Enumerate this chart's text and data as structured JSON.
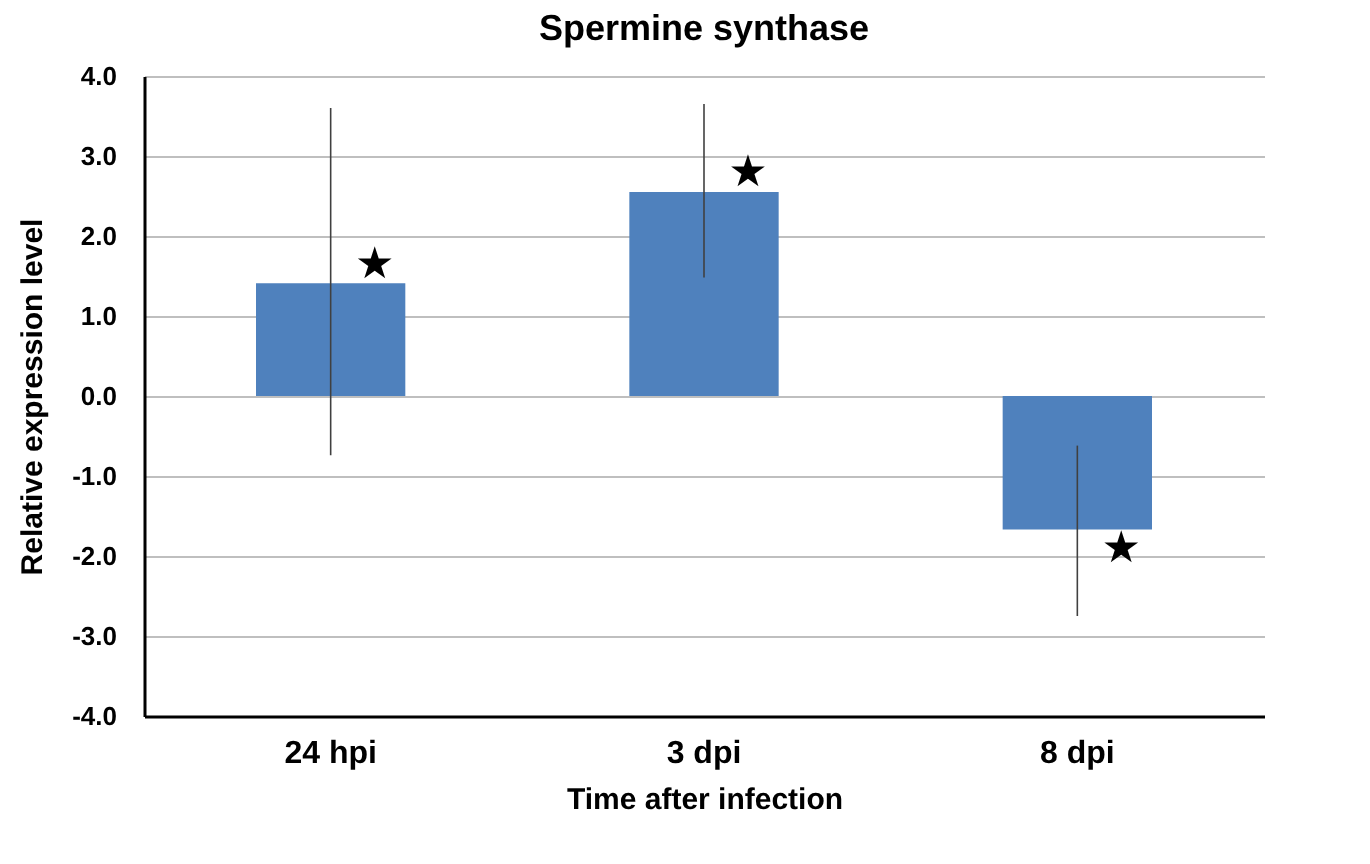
{
  "chart_data": {
    "type": "bar",
    "title": "Spermine synthase",
    "xlabel": "Time after infection",
    "ylabel": "Relative expression level",
    "categories": [
      "24 hpi",
      "3 dpi",
      "8 dpi"
    ],
    "values": [
      1.41,
      2.55,
      -1.67
    ],
    "color": "#4f81bd",
    "errors": [
      [
        -0.74,
        3.6
      ],
      [
        1.48,
        3.65
      ],
      [
        -2.75,
        -0.62
      ]
    ],
    "ylim": [
      -4,
      4
    ],
    "yticks": [
      {
        "value": -4,
        "label": "-4.0"
      },
      {
        "value": -3,
        "label": "-3.0"
      },
      {
        "value": -2,
        "label": "-2.0"
      },
      {
        "value": -1,
        "label": "-1.0"
      },
      {
        "value": 0,
        "label": "0.0"
      },
      {
        "value": 1,
        "label": "1.0"
      },
      {
        "value": 2,
        "label": "2.0"
      },
      {
        "value": 3,
        "label": "3.0"
      },
      {
        "value": 4,
        "label": "4.0"
      }
    ],
    "grid": "y",
    "annotations": [
      {
        "text": "★",
        "x": "24 hpi",
        "y": 1.65
      },
      {
        "text": "★",
        "x": "3 dpi",
        "y": 2.8
      },
      {
        "text": "★",
        "x": "8 dpi",
        "y": -1.9
      }
    ]
  }
}
